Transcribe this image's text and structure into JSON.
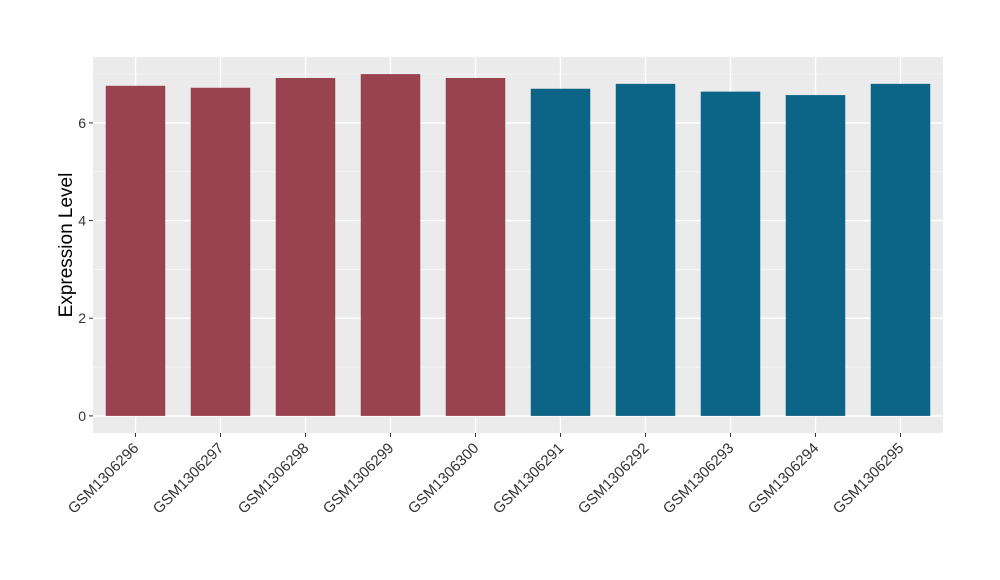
{
  "chart_data": {
    "type": "bar",
    "y_label": "Expression Level",
    "categories": [
      "GSM1306296",
      "GSM1306297",
      "GSM1306298",
      "GSM1306299",
      "GSM1306300",
      "GSM1306291",
      "GSM1306292",
      "GSM1306293",
      "GSM1306294",
      "GSM1306295"
    ],
    "values": [
      6.76,
      6.72,
      6.92,
      7.0,
      6.92,
      6.7,
      6.8,
      6.64,
      6.57,
      6.8
    ],
    "colors": [
      "#994350",
      "#994350",
      "#994350",
      "#994350",
      "#994350",
      "#0c6586",
      "#0c6586",
      "#0c6586",
      "#0c6586",
      "#0c6586"
    ],
    "ylim": [
      -0.35,
      7.35
    ],
    "yticks": [
      0,
      2,
      4,
      6
    ],
    "minor_yticks": [
      1,
      3,
      5,
      7
    ],
    "grid": true
  }
}
